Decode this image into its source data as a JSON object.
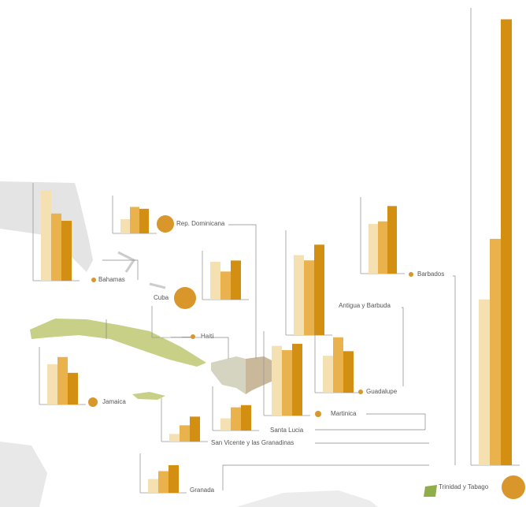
{
  "countries": [
    {
      "name": "Bahamas",
      "ylim": [
        0,
        8
      ],
      "values": [
        7.4,
        5.5,
        4.9
      ]
    },
    {
      "name": "Rep. Dominicana",
      "ylim": [
        0,
        4
      ],
      "values": [
        1.5,
        2.8,
        2.6
      ]
    },
    {
      "name": "Cuba",
      "ylim": [
        0,
        4
      ],
      "values": [
        3.1,
        2.3,
        3.2
      ]
    },
    {
      "name": "Barbados",
      "ylim": [
        0,
        6
      ],
      "values": [
        3.9,
        4.1,
        5.3
      ]
    },
    {
      "name": "Antigua y Barbuda",
      "ylim": [
        0,
        8
      ],
      "values": [
        6.1,
        5.7,
        6.9
      ]
    },
    {
      "name": "Haití",
      "ylim": [
        0,
        4
      ],
      "values": [
        0.1,
        0.1,
        0.1
      ]
    },
    {
      "name": "Jamaica",
      "ylim": [
        0,
        4
      ],
      "values": [
        2.8,
        3.3,
        2.2
      ]
    },
    {
      "name": "Martinica",
      "ylim": [
        0,
        4
      ],
      "values": [
        3.3,
        3.1,
        3.4
      ]
    },
    {
      "name": "Guadalupe",
      "ylim": [
        0,
        4
      ],
      "values": [
        2.4,
        3.6,
        2.7
      ]
    },
    {
      "name": "Santa Lucia",
      "ylim": [
        0,
        4
      ],
      "values": [
        1.1,
        2.1,
        2.3
      ]
    },
    {
      "name": "San Vicente y las Granadinas",
      "ylim": [
        0,
        4
      ],
      "values": [
        0.7,
        1.5,
        2.3
      ]
    },
    {
      "name": "Granada",
      "ylim": [
        0,
        4
      ],
      "values": [
        1.4,
        2.2,
        2.8
      ]
    },
    {
      "name": "Trinidad y Tabago",
      "ylim": [
        0,
        40
      ],
      "values": [
        14.5,
        19.8,
        39.0
      ]
    }
  ],
  "colors": [
    "#f4e0b0",
    "#e9b24c",
    "#d38f12"
  ]
}
